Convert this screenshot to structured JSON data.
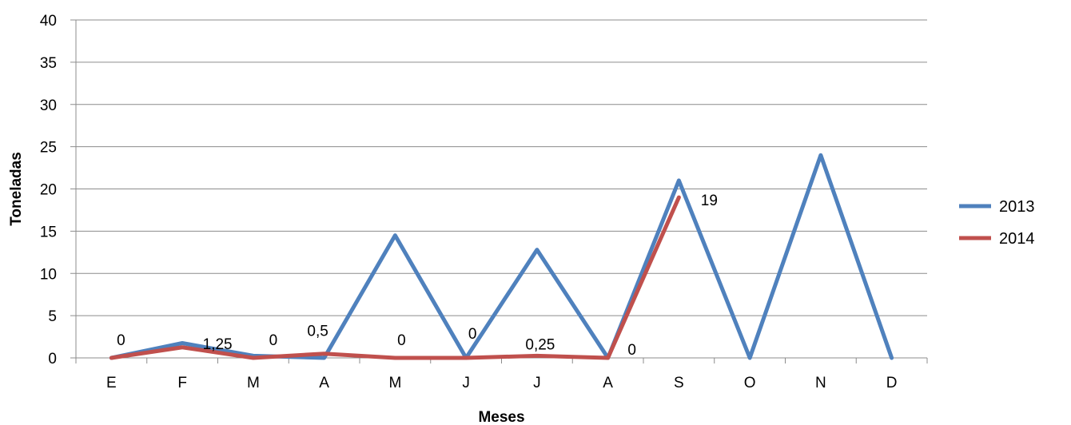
{
  "chart_data": {
    "type": "line",
    "categories": [
      "E",
      "F",
      "M",
      "A",
      "M",
      "J",
      "J",
      "A",
      "S",
      "O",
      "N",
      "D"
    ],
    "series": [
      {
        "name": "2013",
        "color": "#4F81BD",
        "values": [
          0,
          1.75,
          0.25,
          0,
          14.5,
          0,
          12.8,
          0,
          21,
          0,
          24,
          0
        ]
      },
      {
        "name": "2014",
        "color": "#C0504D",
        "values": [
          0,
          1.25,
          0,
          0.5,
          0,
          0,
          0.25,
          0,
          19,
          null,
          null,
          null
        ],
        "data_labels": [
          "0",
          "1,25",
          "0",
          "0,5",
          "0",
          "0",
          "0,25",
          "0",
          "19"
        ]
      }
    ],
    "xlabel": "Meses",
    "ylabel": "Toneladas",
    "ylim": [
      0,
      40
    ],
    "yticks": [
      0,
      5,
      10,
      15,
      20,
      25,
      30,
      35,
      40
    ],
    "grid": true,
    "legend_position": "right"
  }
}
